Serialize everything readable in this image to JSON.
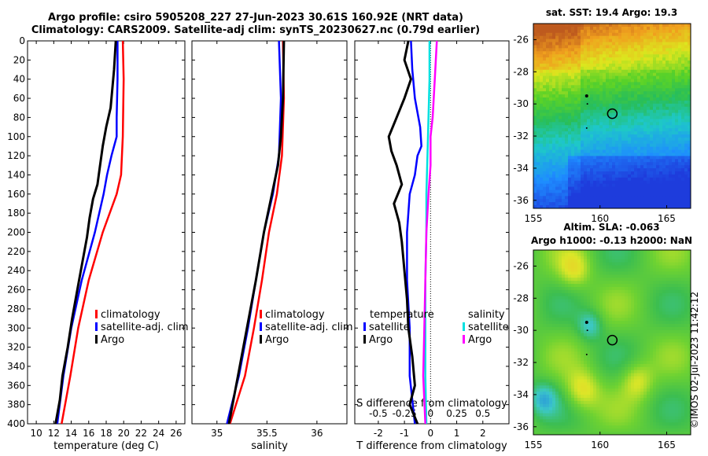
{
  "header": {
    "title_line1": "Argo profile: csiro 5905208_227 27-Jun-2023 30.61S 160.92E (NRT data)",
    "title_line2": "Climatology: CARS2009. Satellite-adj clim: synTS_20230627.nc (0.79d earlier)"
  },
  "sst_map": {
    "title": "sat. SST: 19.4  Argo: 19.3",
    "xticks": [
      "155",
      "160",
      "165"
    ],
    "yticks": [
      "-26",
      "-28",
      "-30",
      "-32",
      "-34",
      "-36"
    ]
  },
  "sla_map": {
    "title_line1": "Altim. SLA: -0.063",
    "title_line2": "Argo h1000: -0.13  h2000: NaN",
    "xticks": [
      "155",
      "160",
      "165"
    ],
    "yticks": [
      "-26",
      "-28",
      "-30",
      "-32",
      "-34",
      "-36"
    ]
  },
  "stamp": "©IMOS 02-Jul-2023 11:42:12",
  "colors": {
    "climatology": "#ff0000",
    "satellite": "#0000ff",
    "argo": "#000000",
    "satellite_sal": "#00e0e0",
    "argo_sal": "#ff00ff"
  },
  "chart_data": [
    {
      "type": "line",
      "name": "temperature",
      "xlabel": "temperature (deg C)",
      "ylabel": "",
      "xlim": [
        9,
        27
      ],
      "ylim": [
        400,
        0
      ],
      "xticks": [
        10,
        12,
        14,
        16,
        18,
        20,
        22,
        24,
        26
      ],
      "yticks": [
        0,
        20,
        40,
        60,
        80,
        100,
        120,
        140,
        160,
        180,
        200,
        220,
        240,
        260,
        280,
        300,
        320,
        340,
        360,
        380,
        400
      ],
      "legend": [
        "climatology",
        "satellite-adj. clim",
        "Argo"
      ],
      "series": [
        {
          "name": "climatology",
          "depth": [
            0,
            40,
            100,
            140,
            160,
            200,
            250,
            300,
            350,
            400
          ],
          "values": [
            19.9,
            20.0,
            19.9,
            19.7,
            19.2,
            17.6,
            16.0,
            14.8,
            13.9,
            12.9
          ]
        },
        {
          "name": "satellite-adj. clim",
          "depth": [
            0,
            40,
            80,
            100,
            120,
            140,
            160,
            200,
            250,
            300,
            350,
            400
          ],
          "values": [
            19.3,
            19.3,
            19.2,
            19.2,
            18.6,
            18.1,
            17.7,
            16.7,
            15.2,
            14.0,
            13.1,
            12.4
          ]
        },
        {
          "name": "Argo",
          "depth": [
            0,
            30,
            50,
            70,
            90,
            110,
            130,
            150,
            165,
            185,
            205,
            230,
            260,
            290,
            320,
            350,
            375,
            400
          ],
          "values": [
            19.1,
            18.9,
            18.7,
            18.5,
            18.0,
            17.6,
            17.3,
            17.0,
            16.5,
            16.1,
            15.8,
            15.3,
            14.7,
            14.1,
            13.6,
            13.0,
            12.7,
            12.2
          ]
        }
      ]
    },
    {
      "type": "line",
      "name": "salinity",
      "xlabel": "salinity",
      "ylabel": "",
      "xlim": [
        34.75,
        36.3
      ],
      "ylim": [
        400,
        0
      ],
      "xticks": [
        35,
        35.5,
        36
      ],
      "legend": [
        "climatology",
        "satellite-adj. clim",
        "Argo"
      ],
      "series": [
        {
          "name": "climatology",
          "depth": [
            0,
            60,
            120,
            160,
            200,
            250,
            300,
            350,
            400
          ],
          "values": [
            35.66,
            35.67,
            35.65,
            35.6,
            35.52,
            35.45,
            35.37,
            35.28,
            35.13
          ]
        },
        {
          "name": "satellite-adj. clim",
          "depth": [
            0,
            60,
            120,
            160,
            200,
            250,
            300,
            350,
            400
          ],
          "values": [
            35.62,
            35.64,
            35.62,
            35.56,
            35.47,
            35.39,
            35.31,
            35.22,
            35.1
          ]
        },
        {
          "name": "Argo",
          "depth": [
            0,
            60,
            100,
            130,
            160,
            200,
            250,
            300,
            350,
            400
          ],
          "values": [
            35.67,
            35.66,
            35.64,
            35.61,
            35.55,
            35.47,
            35.39,
            35.3,
            35.21,
            35.12
          ]
        }
      ]
    },
    {
      "type": "line",
      "name": "difference",
      "xlabel": "T difference from climatology",
      "xlabel_top": "S difference from climatology",
      "xlim": [
        -2.9,
        3.0
      ],
      "ylim": [
        400,
        0
      ],
      "xticks": [
        -2,
        -1,
        0,
        1,
        2
      ],
      "xticks_top": [
        "-0.5",
        "-0.25",
        "0",
        "0.25",
        "0.5"
      ],
      "legend_left_title": "temperature",
      "legend_right_title": "salinity",
      "legend_left": [
        "satellite",
        "Argo"
      ],
      "legend_right": [
        "satellite",
        "Argo"
      ],
      "series": [
        {
          "name": "T satellite",
          "depth": [
            0,
            30,
            60,
            90,
            110,
            120,
            140,
            160,
            200,
            250,
            300,
            350,
            400
          ],
          "values": [
            -0.75,
            -0.7,
            -0.6,
            -0.4,
            -0.35,
            -0.5,
            -0.6,
            -0.8,
            -0.9,
            -0.9,
            -0.8,
            -0.8,
            -0.6
          ]
        },
        {
          "name": "T Argo",
          "depth": [
            0,
            20,
            40,
            60,
            80,
            100,
            115,
            130,
            150,
            170,
            190,
            210,
            240,
            270,
            300,
            330,
            360,
            380,
            400
          ],
          "values": [
            -0.85,
            -1.0,
            -0.75,
            -1.0,
            -1.3,
            -1.6,
            -1.5,
            -1.3,
            -1.1,
            -1.4,
            -1.2,
            -1.1,
            -1.0,
            -0.9,
            -0.85,
            -0.7,
            -0.6,
            -0.8,
            -0.5
          ]
        },
        {
          "name": "S satellite",
          "depth": [
            0,
            40,
            80,
            120,
            160,
            200,
            250,
            300,
            350,
            400
          ],
          "values": [
            -0.01,
            -0.01,
            -0.02,
            -0.03,
            -0.04,
            -0.04,
            -0.05,
            -0.05,
            -0.05,
            -0.04
          ]
        },
        {
          "name": "S Argo",
          "depth": [
            0,
            40,
            80,
            100,
            130,
            160,
            200,
            250,
            300,
            350,
            400
          ],
          "values": [
            0.06,
            0.04,
            0.02,
            0.0,
            0.0,
            -0.02,
            -0.04,
            -0.05,
            -0.06,
            -0.07,
            -0.05
          ]
        }
      ]
    }
  ]
}
